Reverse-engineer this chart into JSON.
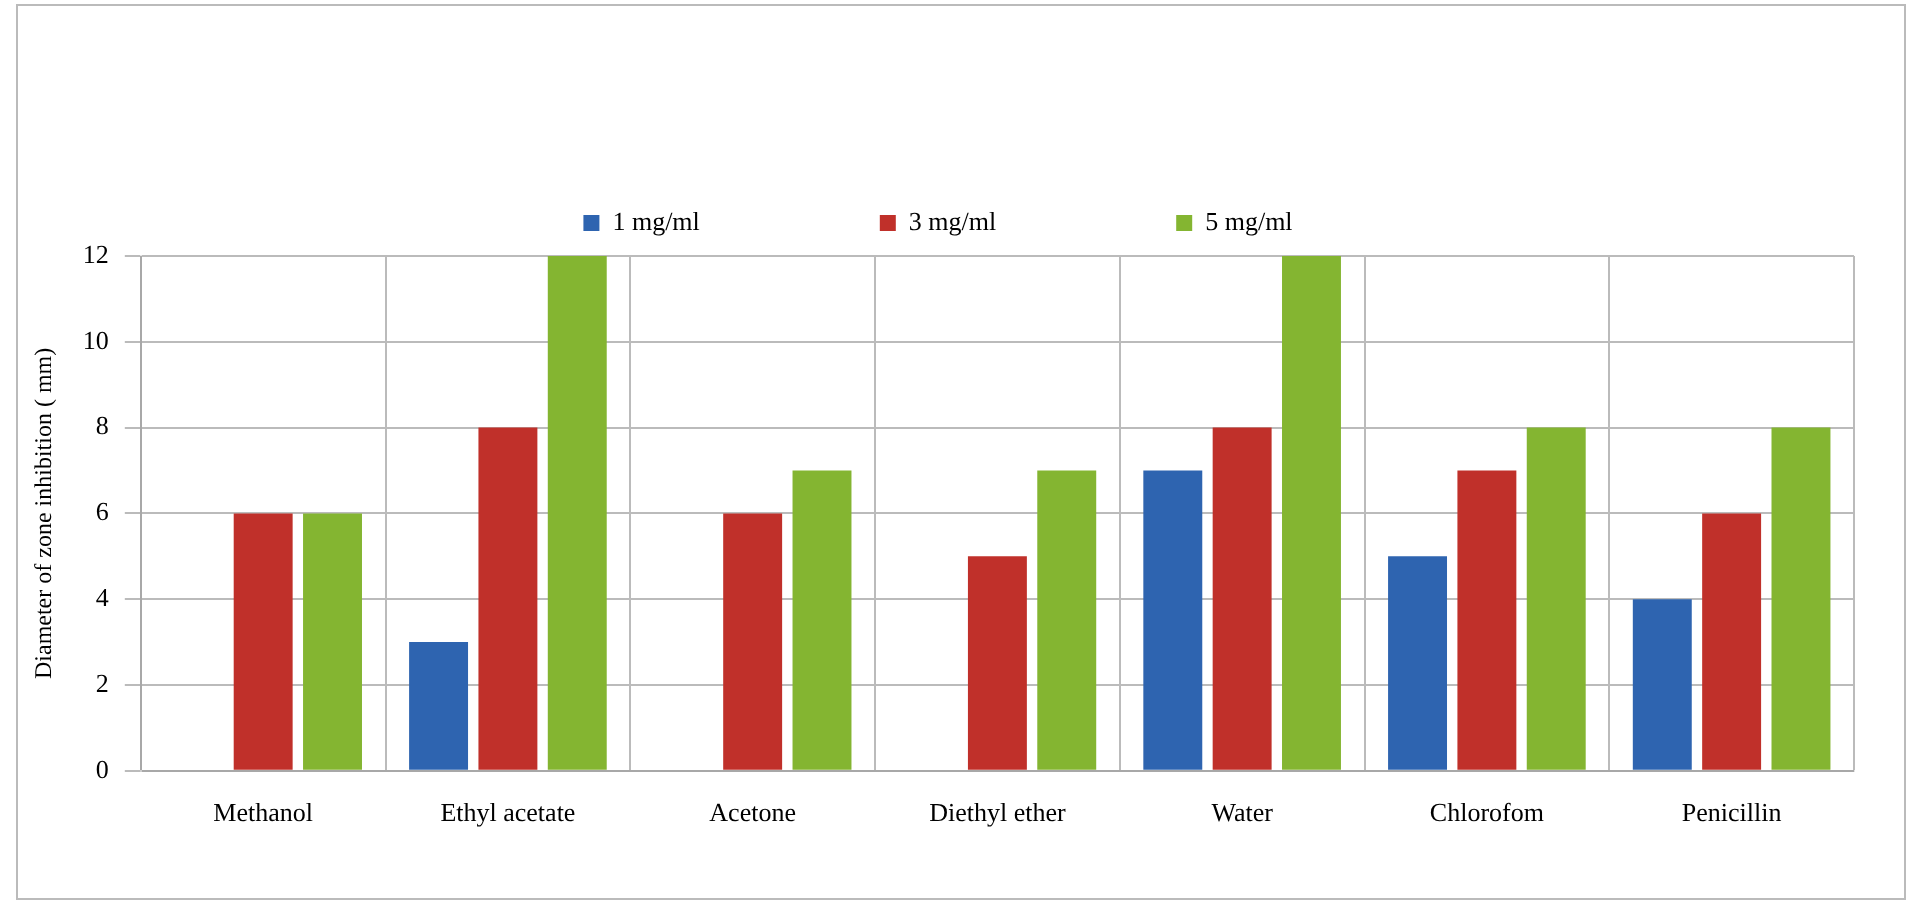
{
  "chart_data": {
    "type": "bar",
    "ylabel": "Diameter of zone inhibition ( mm)",
    "categories": [
      "Methanol",
      "Ethyl acetate",
      "Acetone",
      "Diethyl ether",
      "Water",
      "Chlorofom",
      "Penicillin"
    ],
    "series": [
      {
        "name": "1 mg/ml",
        "color": "#2e64b0",
        "values": [
          0,
          3,
          0,
          0,
          7,
          5,
          4
        ]
      },
      {
        "name": "3 mg/ml",
        "color": "#c0302a",
        "values": [
          6,
          8,
          6,
          5,
          8,
          7,
          6
        ]
      },
      {
        "name": "5 mg/ml",
        "color": "#84b531",
        "values": [
          6,
          12,
          7,
          7,
          12,
          8,
          8
        ]
      }
    ],
    "ylim": [
      0,
      12
    ],
    "yticks": [
      0,
      2,
      4,
      6,
      8,
      10,
      12
    ],
    "grid": true,
    "legend": "top"
  }
}
